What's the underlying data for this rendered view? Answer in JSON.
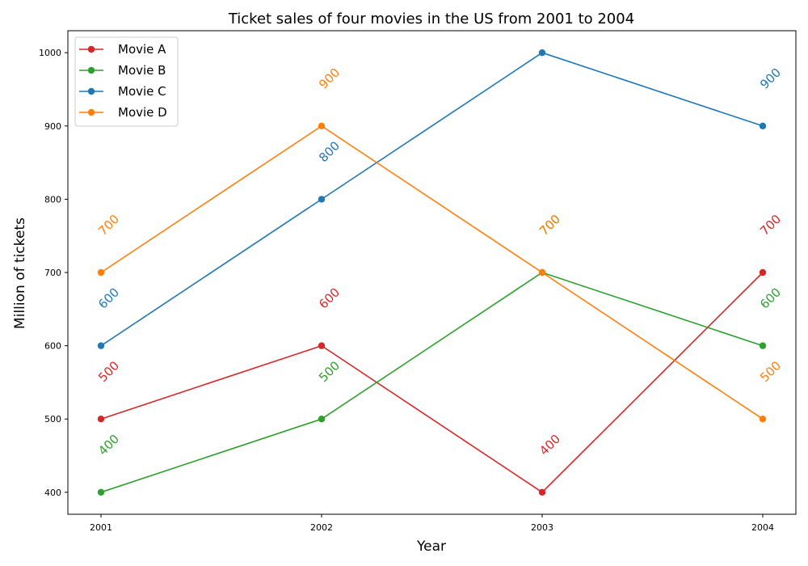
{
  "chart_data": {
    "type": "line",
    "title": "Ticket sales of four movies in the US from 2001 to 2004",
    "xlabel": "Year",
    "ylabel": "Million of tickets",
    "categories": [
      "2001",
      "2002",
      "2003",
      "2004"
    ],
    "ylim": [
      370,
      1030
    ],
    "yticks": [
      400,
      500,
      600,
      700,
      800,
      900,
      1000
    ],
    "grid": false,
    "legend_position": "top-left",
    "series": [
      {
        "name": "Movie A",
        "color": "#d62728",
        "values": [
          500,
          600,
          400,
          700
        ],
        "labels": [
          "500",
          "600",
          "400",
          "700"
        ]
      },
      {
        "name": "Movie B",
        "color": "#2ca02c",
        "values": [
          400,
          500,
          700,
          600
        ],
        "labels": [
          "400",
          "500",
          "700",
          "600"
        ]
      },
      {
        "name": "Movie C",
        "color": "#1f77b4",
        "values": [
          600,
          800,
          1000,
          900
        ],
        "labels": [
          "600",
          "800",
          "",
          "900"
        ]
      },
      {
        "name": "Movie D",
        "color": "#ff7f0e",
        "values": [
          700,
          900,
          700,
          500
        ],
        "labels": [
          "700",
          "900",
          "700",
          "500"
        ]
      }
    ]
  }
}
